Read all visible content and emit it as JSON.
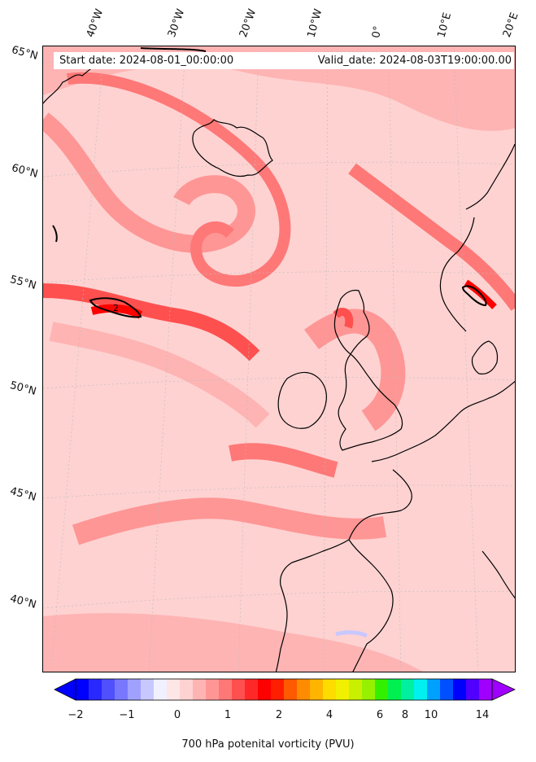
{
  "map": {
    "field": "700 hPa potential vorticity",
    "background_color": "#ffd2d2",
    "coastline_color": "#000000",
    "contour_label": "2"
  },
  "header": {
    "start_date": "Start date: 2024-08-01_00:00:00",
    "valid_date": "Valid_date: 2024-08-03T19:00:00.00"
  },
  "graticule": {
    "longitude_labels": [
      "40°W",
      "30°W",
      "20°W",
      "10°W",
      "0°",
      "10°E",
      "20°E"
    ],
    "latitude_labels": [
      "65°N",
      "60°N",
      "55°N",
      "50°N",
      "45°N",
      "40°N"
    ]
  },
  "colorbar": {
    "title": "700 hPa potenital vorticity (PVU)",
    "tick_labels": [
      "−2",
      "−1",
      "0",
      "1",
      "2",
      "4",
      "6",
      "8",
      "10",
      "14"
    ],
    "colors": [
      "#0000ff",
      "#2828ff",
      "#5050ff",
      "#7878ff",
      "#a0a0ff",
      "#c8c8ff",
      "#f0f0ff",
      "#ffe6e6",
      "#ffd2d2",
      "#ffb4b4",
      "#ff9696",
      "#ff7878",
      "#ff5050",
      "#ff2828",
      "#ff0000",
      "#ff1e00",
      "#ff5a00",
      "#ff8c00",
      "#ffb400",
      "#ffdc00",
      "#f0f000",
      "#c8f000",
      "#96f000",
      "#32f000",
      "#00f050",
      "#00f0a0",
      "#00f0f0",
      "#00a0ff",
      "#0050ff",
      "#0000ff",
      "#5000ff",
      "#a000ff"
    ]
  }
}
